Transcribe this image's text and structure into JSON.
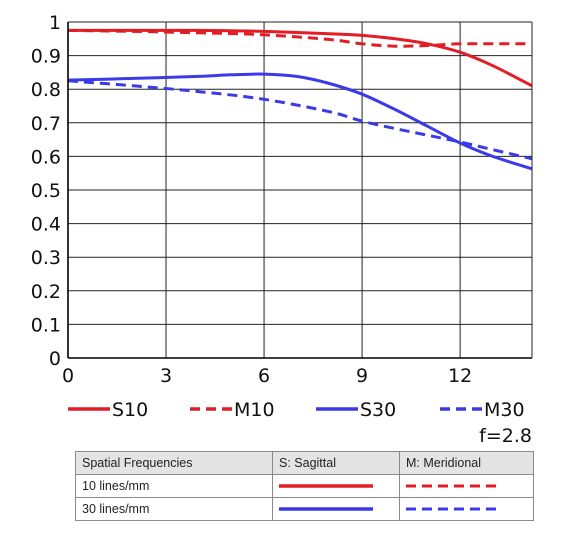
{
  "chart_data": {
    "type": "line",
    "title": "",
    "xlabel": "",
    "ylabel": "",
    "xlim": [
      0,
      14.2
    ],
    "ylim": [
      0,
      1
    ],
    "xticks": [
      0,
      3,
      6,
      9,
      12
    ],
    "yticks": [
      0,
      0.1,
      0.2,
      0.3,
      0.4,
      0.5,
      0.6,
      0.7,
      0.8,
      0.9,
      1
    ],
    "ytick_labels": [
      "0",
      "0.1",
      "0.2",
      "0.3",
      "0.4",
      "0.5",
      "0.6",
      "0.7",
      "0.8",
      "0.9",
      "1"
    ],
    "grid": true,
    "legend_position": "bottom",
    "series": [
      {
        "name": "S10",
        "color": "#e21d25",
        "dash": "solid",
        "x": [
          0,
          2,
          4,
          6,
          8,
          9,
          10,
          11,
          12,
          13,
          14.2
        ],
        "y": [
          0.975,
          0.975,
          0.975,
          0.972,
          0.965,
          0.96,
          0.95,
          0.935,
          0.91,
          0.87,
          0.81
        ]
      },
      {
        "name": "M10",
        "color": "#e21d25",
        "dash": "dashed",
        "x": [
          0,
          2,
          4,
          6,
          8,
          9,
          10,
          11,
          12,
          13,
          14.2
        ],
        "y": [
          0.975,
          0.972,
          0.968,
          0.962,
          0.948,
          0.935,
          0.928,
          0.93,
          0.935,
          0.935,
          0.935
        ]
      },
      {
        "name": "S30",
        "color": "#3a3ae8",
        "dash": "solid",
        "x": [
          0,
          2,
          4,
          5,
          6,
          7,
          8,
          9,
          10,
          11,
          12,
          13,
          14.2
        ],
        "y": [
          0.827,
          0.832,
          0.838,
          0.843,
          0.845,
          0.838,
          0.817,
          0.785,
          0.74,
          0.69,
          0.64,
          0.6,
          0.563
        ]
      },
      {
        "name": "M30",
        "color": "#3a3ae8",
        "dash": "dashed",
        "x": [
          0,
          2,
          4,
          6,
          8,
          9,
          10,
          11,
          12,
          13,
          14.2
        ],
        "y": [
          0.825,
          0.81,
          0.793,
          0.77,
          0.733,
          0.705,
          0.683,
          0.663,
          0.643,
          0.62,
          0.593
        ]
      }
    ],
    "annotations": [
      "f=2.8"
    ]
  },
  "aperture": "f=2.8",
  "table": {
    "headers": [
      "Spatial Frequencies",
      "S: Sagittal",
      "M: Meridional"
    ],
    "rows": [
      {
        "label": "10 lines/mm",
        "color": "#e21d25"
      },
      {
        "label": "30 lines/mm",
        "color": "#3a3ae8"
      }
    ]
  }
}
